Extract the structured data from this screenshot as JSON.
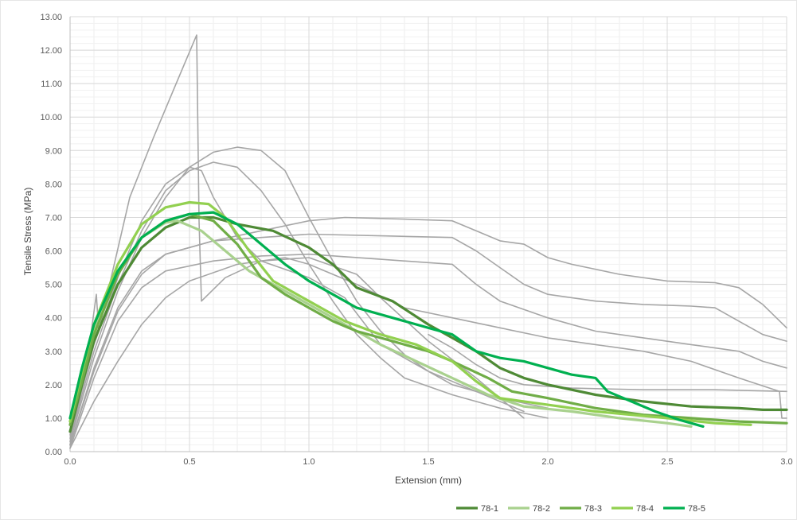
{
  "chart_data": {
    "type": "line",
    "title": "",
    "xlabel": "Extension (mm)",
    "ylabel": "Tensile Stress (MPa)",
    "xlim": [
      0,
      3.0
    ],
    "ylim": [
      0,
      13.0
    ],
    "x_ticks": [
      "0.0",
      "0.5",
      "1.0",
      "1.5",
      "2.0",
      "2.5",
      "3.0"
    ],
    "y_ticks": [
      "0.00",
      "1.00",
      "2.00",
      "3.00",
      "4.00",
      "5.00",
      "6.00",
      "7.00",
      "8.00",
      "9.00",
      "10.00",
      "11.00",
      "12.00",
      "13.00"
    ],
    "grid": true,
    "legend_position": "bottom-right",
    "background_series": [
      {
        "color": "#a6a6a6",
        "points": [
          [
            0,
            0.2
          ],
          [
            0.07,
            2.6
          ],
          [
            0.11,
            4.7
          ],
          [
            0.12,
            3.6
          ],
          [
            0.25,
            7.6
          ],
          [
            0.35,
            9.4
          ],
          [
            0.45,
            11.1
          ],
          [
            0.53,
            12.45
          ],
          [
            0.54,
            6.9
          ],
          [
            0.55,
            4.5
          ],
          [
            0.65,
            5.2
          ],
          [
            0.8,
            5.7
          ],
          [
            1.0,
            5.8
          ],
          [
            1.2,
            5.3
          ],
          [
            1.3,
            4.6
          ],
          [
            1.5,
            3.3
          ],
          [
            1.7,
            2.2
          ],
          [
            1.9,
            1.0
          ]
        ]
      },
      {
        "color": "#a6a6a6",
        "points": [
          [
            0,
            0.5
          ],
          [
            0.1,
            3.2
          ],
          [
            0.2,
            5.2
          ],
          [
            0.3,
            6.9
          ],
          [
            0.4,
            8.0
          ],
          [
            0.5,
            8.5
          ],
          [
            0.55,
            8.4
          ],
          [
            0.6,
            7.6
          ],
          [
            0.7,
            6.4
          ],
          [
            0.8,
            5.7
          ],
          [
            1.0,
            5.2
          ],
          [
            1.15,
            4.6
          ],
          [
            1.3,
            3.2
          ],
          [
            1.5,
            2.4
          ],
          [
            1.7,
            1.8
          ],
          [
            1.9,
            1.2
          ]
        ]
      },
      {
        "color": "#a6a6a6",
        "points": [
          [
            0,
            0.4
          ],
          [
            0.1,
            3.0
          ],
          [
            0.2,
            5.0
          ],
          [
            0.3,
            6.6
          ],
          [
            0.4,
            7.8
          ],
          [
            0.5,
            8.4
          ],
          [
            0.6,
            8.65
          ],
          [
            0.7,
            8.5
          ],
          [
            0.8,
            7.8
          ],
          [
            0.9,
            6.8
          ],
          [
            1.0,
            5.6
          ],
          [
            1.1,
            4.5
          ],
          [
            1.2,
            3.5
          ],
          [
            1.3,
            2.8
          ],
          [
            1.4,
            2.2
          ],
          [
            1.6,
            1.7
          ],
          [
            1.8,
            1.3
          ],
          [
            2.0,
            1.0
          ]
        ]
      },
      {
        "color": "#a6a6a6",
        "points": [
          [
            0,
            0.3
          ],
          [
            0.1,
            2.8
          ],
          [
            0.2,
            4.8
          ],
          [
            0.3,
            6.4
          ],
          [
            0.4,
            7.6
          ],
          [
            0.5,
            8.5
          ],
          [
            0.6,
            8.95
          ],
          [
            0.7,
            9.1
          ],
          [
            0.8,
            9.0
          ],
          [
            0.9,
            8.4
          ],
          [
            1.0,
            7.0
          ],
          [
            1.1,
            5.7
          ],
          [
            1.2,
            4.5
          ],
          [
            1.3,
            3.6
          ],
          [
            1.4,
            2.9
          ],
          [
            1.5,
            2.4
          ],
          [
            1.6,
            2.0
          ],
          [
            1.8,
            1.6
          ],
          [
            2.0,
            1.3
          ]
        ]
      },
      {
        "color": "#a6a6a6",
        "points": [
          [
            0,
            0.2
          ],
          [
            0.1,
            2.5
          ],
          [
            0.2,
            4.3
          ],
          [
            0.3,
            5.4
          ],
          [
            0.4,
            5.9
          ],
          [
            0.6,
            6.3
          ],
          [
            0.8,
            6.6
          ],
          [
            1.0,
            6.9
          ],
          [
            1.15,
            7.0
          ],
          [
            1.4,
            6.95
          ],
          [
            1.6,
            6.9
          ],
          [
            1.7,
            6.6
          ],
          [
            1.8,
            6.3
          ],
          [
            1.9,
            6.2
          ],
          [
            2.0,
            5.8
          ],
          [
            2.1,
            5.6
          ],
          [
            2.3,
            5.3
          ],
          [
            2.5,
            5.1
          ],
          [
            2.7,
            5.05
          ],
          [
            2.8,
            4.9
          ],
          [
            2.9,
            4.4
          ],
          [
            3.0,
            3.7
          ]
        ]
      },
      {
        "color": "#a6a6a6",
        "points": [
          [
            0,
            0.2
          ],
          [
            0.1,
            2.4
          ],
          [
            0.2,
            4.2
          ],
          [
            0.3,
            5.3
          ],
          [
            0.4,
            5.9
          ],
          [
            0.6,
            6.3
          ],
          [
            0.8,
            6.4
          ],
          [
            1.0,
            6.5
          ],
          [
            1.3,
            6.45
          ],
          [
            1.6,
            6.4
          ],
          [
            1.7,
            6.0
          ],
          [
            1.8,
            5.5
          ],
          [
            1.9,
            5.0
          ],
          [
            2.0,
            4.7
          ],
          [
            2.2,
            4.5
          ],
          [
            2.4,
            4.4
          ],
          [
            2.6,
            4.35
          ],
          [
            2.7,
            4.3
          ],
          [
            2.8,
            3.9
          ],
          [
            2.9,
            3.5
          ],
          [
            3.0,
            3.3
          ]
        ]
      },
      {
        "color": "#a6a6a6",
        "points": [
          [
            0,
            0.1
          ],
          [
            0.1,
            2.2
          ],
          [
            0.2,
            3.9
          ],
          [
            0.3,
            4.9
          ],
          [
            0.4,
            5.4
          ],
          [
            0.6,
            5.7
          ],
          [
            0.8,
            5.85
          ],
          [
            1.0,
            5.9
          ],
          [
            1.3,
            5.75
          ],
          [
            1.6,
            5.6
          ],
          [
            1.7,
            5.0
          ],
          [
            1.8,
            4.5
          ],
          [
            2.0,
            4.0
          ],
          [
            2.2,
            3.6
          ],
          [
            2.4,
            3.4
          ],
          [
            2.6,
            3.2
          ],
          [
            2.8,
            3.0
          ],
          [
            2.9,
            2.7
          ],
          [
            3.0,
            2.5
          ]
        ]
      },
      {
        "color": "#a6a6a6",
        "points": [
          [
            0,
            0.1
          ],
          [
            0.1,
            1.5
          ],
          [
            0.2,
            2.7
          ],
          [
            0.3,
            3.8
          ],
          [
            0.4,
            4.6
          ],
          [
            0.5,
            5.1
          ],
          [
            0.7,
            5.6
          ],
          [
            0.9,
            5.8
          ],
          [
            1.0,
            5.6
          ],
          [
            1.2,
            5.0
          ],
          [
            1.4,
            4.3
          ],
          [
            1.6,
            4.0
          ],
          [
            1.8,
            3.7
          ],
          [
            2.0,
            3.4
          ],
          [
            2.2,
            3.2
          ],
          [
            2.4,
            3.0
          ],
          [
            2.6,
            2.7
          ],
          [
            2.8,
            2.2
          ],
          [
            2.97,
            1.8
          ],
          [
            2.98,
            1.0
          ],
          [
            3.0,
            1.0
          ]
        ]
      },
      {
        "color": "#a6a6a6",
        "points": [
          [
            1.5,
            3.5
          ],
          [
            1.6,
            3.1
          ],
          [
            1.7,
            2.6
          ],
          [
            1.8,
            2.2
          ],
          [
            1.9,
            2.0
          ],
          [
            2.1,
            1.9
          ],
          [
            2.4,
            1.85
          ],
          [
            2.7,
            1.85
          ],
          [
            3.0,
            1.8
          ]
        ]
      }
    ],
    "series": [
      {
        "name": "78-1",
        "color": "#4e8a35",
        "points": [
          [
            0,
            0.6
          ],
          [
            0.05,
            2.0
          ],
          [
            0.1,
            3.3
          ],
          [
            0.2,
            5.0
          ],
          [
            0.3,
            6.1
          ],
          [
            0.4,
            6.7
          ],
          [
            0.5,
            7.0
          ],
          [
            0.6,
            7.0
          ],
          [
            0.7,
            6.8
          ],
          [
            0.85,
            6.6
          ],
          [
            1.0,
            6.1
          ],
          [
            1.1,
            5.6
          ],
          [
            1.2,
            4.9
          ],
          [
            1.35,
            4.5
          ],
          [
            1.5,
            3.8
          ],
          [
            1.6,
            3.4
          ],
          [
            1.7,
            3.0
          ],
          [
            1.8,
            2.5
          ],
          [
            1.9,
            2.2
          ],
          [
            2.0,
            2.0
          ],
          [
            2.2,
            1.7
          ],
          [
            2.4,
            1.5
          ],
          [
            2.6,
            1.35
          ],
          [
            2.8,
            1.3
          ],
          [
            2.9,
            1.25
          ],
          [
            3.0,
            1.25
          ]
        ]
      },
      {
        "name": "78-2",
        "color": "#a9d18e",
        "points": [
          [
            0,
            0.9
          ],
          [
            0.05,
            2.2
          ],
          [
            0.1,
            3.6
          ],
          [
            0.2,
            5.4
          ],
          [
            0.3,
            6.4
          ],
          [
            0.4,
            6.85
          ],
          [
            0.45,
            6.9
          ],
          [
            0.55,
            6.6
          ],
          [
            0.65,
            6.0
          ],
          [
            0.75,
            5.4
          ],
          [
            0.9,
            4.8
          ],
          [
            1.0,
            4.4
          ],
          [
            1.1,
            4.0
          ],
          [
            1.2,
            3.6
          ],
          [
            1.3,
            3.2
          ],
          [
            1.45,
            2.7
          ],
          [
            1.6,
            2.2
          ],
          [
            1.75,
            1.7
          ],
          [
            1.9,
            1.35
          ],
          [
            2.1,
            1.2
          ],
          [
            2.3,
            1.0
          ],
          [
            2.5,
            0.85
          ],
          [
            2.6,
            0.75
          ]
        ]
      },
      {
        "name": "78-3",
        "color": "#70ad47",
        "points": [
          [
            0,
            0.8
          ],
          [
            0.05,
            2.1
          ],
          [
            0.1,
            3.5
          ],
          [
            0.2,
            5.3
          ],
          [
            0.3,
            6.4
          ],
          [
            0.4,
            6.9
          ],
          [
            0.5,
            7.1
          ],
          [
            0.6,
            6.9
          ],
          [
            0.7,
            6.2
          ],
          [
            0.8,
            5.2
          ],
          [
            0.9,
            4.7
          ],
          [
            1.0,
            4.3
          ],
          [
            1.1,
            3.9
          ],
          [
            1.2,
            3.6
          ],
          [
            1.35,
            3.3
          ],
          [
            1.5,
            3.0
          ],
          [
            1.6,
            2.7
          ],
          [
            1.75,
            2.2
          ],
          [
            1.85,
            1.8
          ],
          [
            2.0,
            1.6
          ],
          [
            2.2,
            1.3
          ],
          [
            2.4,
            1.1
          ],
          [
            2.6,
            1.0
          ],
          [
            2.8,
            0.9
          ],
          [
            3.0,
            0.85
          ]
        ]
      },
      {
        "name": "78-4",
        "color": "#92d050",
        "points": [
          [
            0,
            0.9
          ],
          [
            0.05,
            2.4
          ],
          [
            0.1,
            3.8
          ],
          [
            0.2,
            5.6
          ],
          [
            0.3,
            6.8
          ],
          [
            0.4,
            7.3
          ],
          [
            0.5,
            7.45
          ],
          [
            0.58,
            7.4
          ],
          [
            0.65,
            7.0
          ],
          [
            0.75,
            6.0
          ],
          [
            0.85,
            5.1
          ],
          [
            1.0,
            4.5
          ],
          [
            1.15,
            3.9
          ],
          [
            1.3,
            3.5
          ],
          [
            1.45,
            3.2
          ],
          [
            1.6,
            2.7
          ],
          [
            1.7,
            2.1
          ],
          [
            1.8,
            1.6
          ],
          [
            2.0,
            1.4
          ],
          [
            2.2,
            1.2
          ],
          [
            2.5,
            1.0
          ],
          [
            2.7,
            0.85
          ],
          [
            2.85,
            0.8
          ]
        ]
      },
      {
        "name": "78-5",
        "color": "#00b050",
        "points": [
          [
            0,
            1.0
          ],
          [
            0.05,
            2.5
          ],
          [
            0.1,
            3.8
          ],
          [
            0.2,
            5.4
          ],
          [
            0.3,
            6.4
          ],
          [
            0.4,
            6.9
          ],
          [
            0.5,
            7.1
          ],
          [
            0.6,
            7.15
          ],
          [
            0.7,
            6.8
          ],
          [
            0.8,
            6.2
          ],
          [
            0.9,
            5.6
          ],
          [
            1.0,
            5.1
          ],
          [
            1.1,
            4.7
          ],
          [
            1.2,
            4.3
          ],
          [
            1.35,
            4.0
          ],
          [
            1.5,
            3.7
          ],
          [
            1.6,
            3.5
          ],
          [
            1.7,
            3.0
          ],
          [
            1.8,
            2.8
          ],
          [
            1.9,
            2.7
          ],
          [
            2.0,
            2.5
          ],
          [
            2.1,
            2.3
          ],
          [
            2.2,
            2.2
          ],
          [
            2.25,
            1.8
          ],
          [
            2.35,
            1.5
          ],
          [
            2.45,
            1.2
          ],
          [
            2.55,
            0.95
          ],
          [
            2.6,
            0.85
          ],
          [
            2.65,
            0.75
          ]
        ]
      }
    ]
  }
}
